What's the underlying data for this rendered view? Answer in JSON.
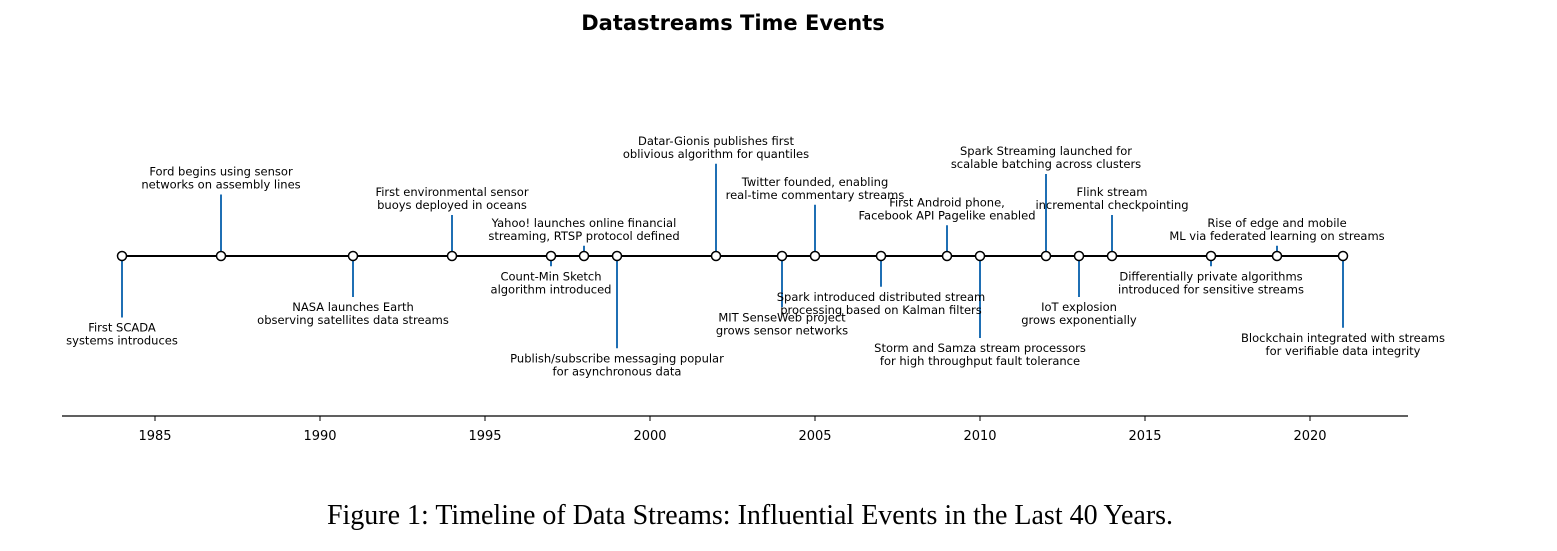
{
  "caption": "Figure 1: Timeline of Data Streams: Influential Events in the Last 40 Years.",
  "colors": {
    "stem": "#1f6fb4",
    "axis": "#000000",
    "marker_fill": "#ffffff",
    "marker_edge": "#000000"
  },
  "chart_data": {
    "type": "timeline",
    "title": "Datastreams Time Events",
    "xlabel": "",
    "ylabel": "",
    "xlim": [
      1982,
      2023
    ],
    "xticks": [
      1985,
      1990,
      1995,
      2000,
      2005,
      2010,
      2015,
      2020
    ],
    "grid": false,
    "events": [
      {
        "year": 1984,
        "level": -3,
        "lines": [
          "First SCADA",
          "systems introduces"
        ]
      },
      {
        "year": 1987,
        "level": 3,
        "lines": [
          "Ford begins using sensor",
          "networks on assembly lines"
        ]
      },
      {
        "year": 1991,
        "level": -2,
        "lines": [
          "NASA launches Earth",
          "observing satellites data streams"
        ]
      },
      {
        "year": 1994,
        "level": 2,
        "lines": [
          "First environmental sensor",
          "buoys deployed in oceans"
        ]
      },
      {
        "year": 1997,
        "level": -0.5,
        "lines": [
          "Count-Min Sketch",
          "algorithm introduced"
        ]
      },
      {
        "year": 1998,
        "level": 0.5,
        "lines": [
          "Yahoo! launches online financial",
          "streaming, RTSP protocol defined"
        ]
      },
      {
        "year": 1999,
        "level": -4.5,
        "lines": [
          "Publish/subscribe messaging popular",
          "for asynchronous data"
        ]
      },
      {
        "year": 2002,
        "level": 4.5,
        "lines": [
          "Datar-Gionis publishes first",
          "oblivious algorithm for quantiles"
        ]
      },
      {
        "year": 2004,
        "level": -2.5,
        "lines": [
          "MIT SenseWeb project",
          "grows sensor networks"
        ]
      },
      {
        "year": 2005,
        "level": 2.5,
        "lines": [
          "Twitter founded, enabling",
          "real-time commentary streams"
        ]
      },
      {
        "year": 2007,
        "level": -1.5,
        "lines": [
          "Spark introduced distributed stream",
          "processing based on Kalman filters"
        ]
      },
      {
        "year": 2009,
        "level": 1.5,
        "lines": [
          "First Android phone,",
          "Facebook API Pagelike enabled"
        ]
      },
      {
        "year": 2010,
        "level": -4,
        "lines": [
          "Storm and Samza stream processors",
          "for high throughput fault tolerance"
        ]
      },
      {
        "year": 2012,
        "level": 4,
        "lines": [
          "Spark Streaming launched for",
          "scalable batching across clusters"
        ]
      },
      {
        "year": 2013,
        "level": -2,
        "lines": [
          "IoT explosion",
          "grows exponentially"
        ]
      },
      {
        "year": 2014,
        "level": 2,
        "lines": [
          "Flink stream",
          "incremental checkpointing"
        ]
      },
      {
        "year": 2017,
        "level": -0.5,
        "lines": [
          "Differentially private algorithms",
          "introduced for sensitive streams"
        ]
      },
      {
        "year": 2019,
        "level": 0.5,
        "lines": [
          "Rise of edge and mobile",
          "ML via federated learning on streams"
        ]
      },
      {
        "year": 2021,
        "level": -3.5,
        "lines": [
          "Blockchain integrated with streams",
          "for verifiable data integrity"
        ]
      }
    ]
  }
}
